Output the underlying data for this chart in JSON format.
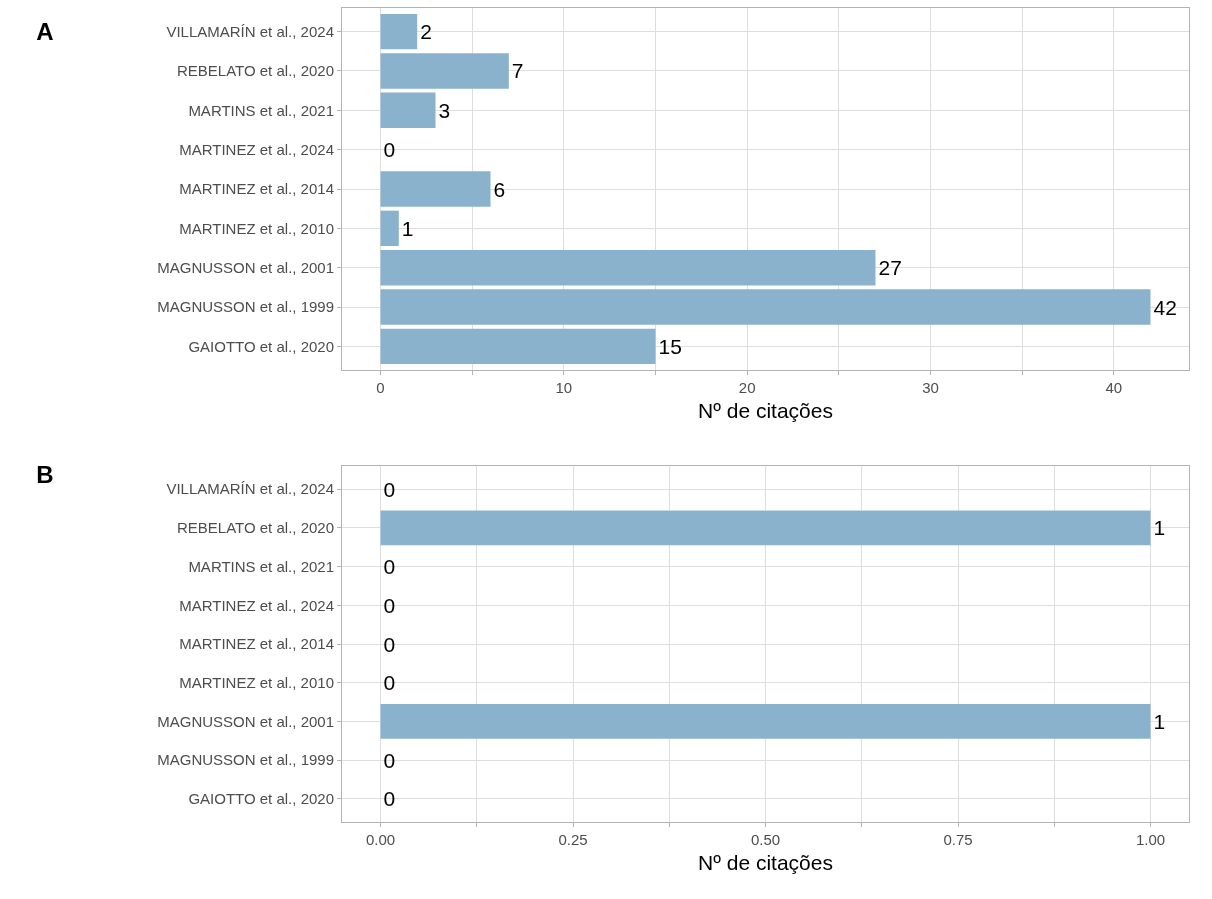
{
  "chart_data": [
    {
      "type": "bar",
      "title": "A",
      "orientation": "horizontal",
      "categories": [
        "VILLAMARÍN et al., 2024",
        "REBELATO et al., 2020",
        "MARTINS et al., 2021",
        "MARTINEZ et al., 2024",
        "MARTINEZ et al., 2014",
        "MARTINEZ et al., 2010",
        "MAGNUSSON et al., 2001",
        "MAGNUSSON et al., 1999",
        "GAIOTTO et al., 2020"
      ],
      "values": [
        2,
        7,
        3,
        0,
        6,
        1,
        27,
        42,
        15
      ],
      "color": "#8ab2cc",
      "data_labels": true,
      "xlabel": "Nº de citações",
      "xlim": [
        -2.1,
        44.1
      ],
      "xticks": [
        0,
        {
          "value": 5,
          "label": null
        },
        10,
        {
          "value": 15,
          "label": null
        },
        20,
        {
          "value": 25,
          "label": null
        },
        30,
        {
          "value": 35,
          "label": null
        },
        40
      ],
      "grid": true
    },
    {
      "type": "bar",
      "title": "B",
      "orientation": "horizontal",
      "categories": [
        "VILLAMARÍN et al., 2024",
        "REBELATO et al., 2020",
        "MARTINS et al., 2021",
        "MARTINEZ et al., 2024",
        "MARTINEZ et al., 2014",
        "MARTINEZ et al., 2010",
        "MAGNUSSON et al., 2001",
        "MAGNUSSON et al., 1999",
        "GAIOTTO et al., 2020"
      ],
      "values": [
        0,
        1,
        0,
        0,
        0,
        0,
        1,
        0,
        0
      ],
      "color": "#8ab2cc",
      "data_labels": true,
      "xlabel": "Nº de citações",
      "xlim": [
        -0.05,
        1.05
      ],
      "xticks": [
        {
          "value": 0,
          "label": "0.00"
        },
        {
          "value": 0.125,
          "label": null
        },
        {
          "value": 0.25,
          "label": "0.25"
        },
        {
          "value": 0.375,
          "label": null
        },
        {
          "value": 0.5,
          "label": "0.50"
        },
        {
          "value": 0.625,
          "label": null
        },
        {
          "value": 0.75,
          "label": "0.75"
        },
        {
          "value": 0.875,
          "label": null
        },
        {
          "value": 1,
          "label": "1.00"
        }
      ],
      "grid": true
    }
  ]
}
